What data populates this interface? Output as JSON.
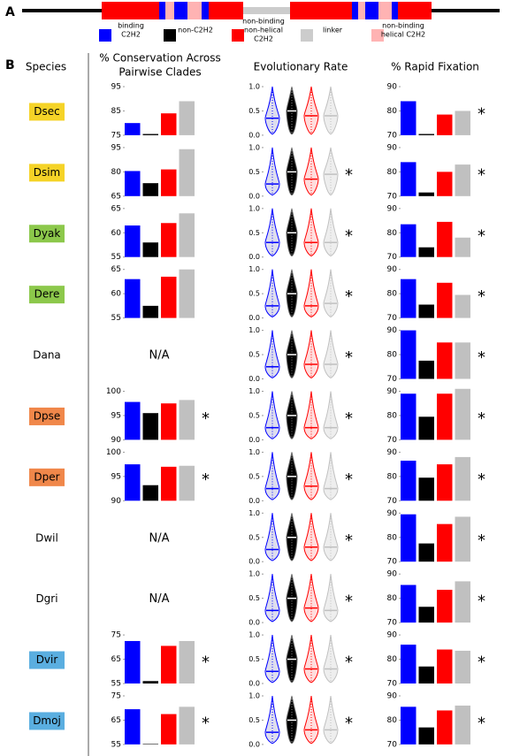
{
  "labels": {
    "a": "A",
    "b": "B"
  },
  "legend": [
    {
      "lines": [
        "binding",
        "C2H2"
      ],
      "color": "#0000ff"
    },
    {
      "lines": [
        "non-C2H2"
      ],
      "color": "#000000"
    },
    {
      "lines": [
        "non-binding",
        "non-helical",
        "C2H2"
      ],
      "color": "#ff0000"
    },
    {
      "lines": [
        "linker"
      ],
      "color": "#cccccc"
    },
    {
      "lines": [
        "non-binding",
        "helical C2H2"
      ],
      "color": "#ffb3b3"
    }
  ],
  "headers": {
    "species": "Species",
    "conservation": [
      "% Conservation Across",
      "Pairwise Clades"
    ],
    "rate": "Evolutionary Rate",
    "fixation": "% Rapid Fixation"
  },
  "bar_colors": [
    "#0000ff",
    "#000000",
    "#ff0000",
    "#c0c0c0"
  ],
  "rate_axis": {
    "ylim": [
      0,
      1
    ],
    "yticks": [
      {
        "value": 0,
        "label": "0.0"
      },
      {
        "value": 0.5,
        "label": "0.5"
      },
      {
        "value": 1,
        "label": "1.0"
      }
    ]
  },
  "species": [
    {
      "name": "Dsec",
      "color": "#f5d327",
      "conservation": {
        "type": "bar",
        "ylim": [
          75,
          95
        ],
        "yticks": [
          75,
          85,
          95
        ],
        "values": [
          80,
          75.5,
          84,
          89
        ]
      },
      "rate": {
        "type": "violin",
        "medians": [
          0.35,
          0.5,
          0.4,
          0.4
        ]
      },
      "fixation": {
        "type": "bar",
        "ylim": [
          70,
          90
        ],
        "yticks": [
          70,
          80,
          90
        ],
        "values": [
          84,
          70.5,
          78.5,
          80
        ],
        "star": "*"
      }
    },
    {
      "name": "Dsim",
      "color": "#f5d327",
      "conservation": {
        "type": "bar",
        "ylim": [
          65,
          95
        ],
        "yticks": [
          65,
          80,
          95
        ],
        "values": [
          80.5,
          73,
          81.5,
          94
        ]
      },
      "rate": {
        "type": "violin",
        "medians": [
          0.25,
          0.5,
          0.35,
          0.45
        ],
        "star": "*"
      },
      "fixation": {
        "type": "bar",
        "ylim": [
          70,
          90
        ],
        "yticks": [
          70,
          80,
          90
        ],
        "values": [
          84,
          71.5,
          80,
          83
        ],
        "star": "*"
      }
    },
    {
      "name": "Dyak",
      "color": "#8cc84b",
      "conservation": {
        "type": "bar",
        "ylim": [
          55,
          65
        ],
        "yticks": [
          55,
          60,
          65
        ],
        "values": [
          61.5,
          58,
          62,
          64
        ]
      },
      "rate": {
        "type": "violin",
        "medians": [
          0.3,
          0.5,
          0.3,
          0.3
        ],
        "star": "*"
      },
      "fixation": {
        "type": "bar",
        "ylim": [
          70,
          90
        ],
        "yticks": [
          70,
          80,
          90
        ],
        "values": [
          83.5,
          74,
          84.5,
          78
        ],
        "star": "*"
      }
    },
    {
      "name": "Dere",
      "color": "#8cc84b",
      "conservation": {
        "type": "bar",
        "ylim": [
          55,
          65
        ],
        "yticks": [
          55,
          60,
          65
        ],
        "values": [
          63,
          57.5,
          63.5,
          65
        ]
      },
      "rate": {
        "type": "violin",
        "medians": [
          0.25,
          0.5,
          0.25,
          0.3
        ],
        "star": "*"
      },
      "fixation": {
        "type": "bar",
        "ylim": [
          70,
          90
        ],
        "yticks": [
          70,
          80,
          90
        ],
        "values": [
          86,
          75.5,
          84.5,
          79.5
        ],
        "star": "*"
      }
    },
    {
      "name": "Dana",
      "color": null,
      "conservation": {
        "na": "N/A"
      },
      "rate": {
        "type": "violin",
        "medians": [
          0.25,
          0.5,
          0.3,
          0.3
        ],
        "star": "*"
      },
      "fixation": {
        "type": "bar",
        "ylim": [
          70,
          90
        ],
        "yticks": [
          70,
          80,
          90
        ],
        "values": [
          90,
          77.5,
          85,
          85
        ],
        "star": "*"
      }
    },
    {
      "name": "Dpse",
      "color": "#f0874a",
      "conservation": {
        "type": "bar",
        "ylim": [
          90,
          100
        ],
        "yticks": [
          90,
          95,
          100
        ],
        "values": [
          97.8,
          95.5,
          97.5,
          98.2
        ],
        "star": "*"
      },
      "rate": {
        "type": "violin",
        "medians": [
          0.25,
          0.5,
          0.25,
          0.25
        ],
        "star": "*"
      },
      "fixation": {
        "type": "bar",
        "ylim": [
          70,
          90
        ],
        "yticks": [
          70,
          80,
          90
        ],
        "values": [
          89,
          79.5,
          89,
          91
        ],
        "star": "*"
      }
    },
    {
      "name": "Dper",
      "color": "#f0874a",
      "conservation": {
        "type": "bar",
        "ylim": [
          90,
          100
        ],
        "yticks": [
          90,
          95,
          100
        ],
        "values": [
          97.5,
          93.2,
          97,
          97.2
        ],
        "star": "*"
      },
      "rate": {
        "type": "violin",
        "medians": [
          0.25,
          0.5,
          0.3,
          0.25
        ],
        "star": "*"
      },
      "fixation": {
        "type": "bar",
        "ylim": [
          70,
          90
        ],
        "yticks": [
          70,
          80,
          90
        ],
        "values": [
          86.5,
          79.5,
          85,
          88
        ],
        "star": "*"
      }
    },
    {
      "name": "Dwil",
      "color": null,
      "conservation": {
        "na": "N/A"
      },
      "rate": {
        "type": "violin",
        "medians": [
          0.25,
          0.5,
          0.3,
          0.3
        ],
        "star": "*"
      },
      "fixation": {
        "type": "bar",
        "ylim": [
          70,
          90
        ],
        "yticks": [
          70,
          80,
          90
        ],
        "values": [
          89.5,
          77.5,
          85.5,
          88.5
        ],
        "star": "*"
      }
    },
    {
      "name": "Dgri",
      "color": null,
      "conservation": {
        "na": "N/A"
      },
      "rate": {
        "type": "violin",
        "medians": [
          0.25,
          0.5,
          0.3,
          0.25
        ],
        "star": "*"
      },
      "fixation": {
        "type": "bar",
        "ylim": [
          70,
          90
        ],
        "yticks": [
          70,
          80,
          90
        ],
        "values": [
          85.5,
          76.5,
          83.5,
          87
        ],
        "star": "*"
      }
    },
    {
      "name": "Dvir",
      "color": "#5aaee0",
      "conservation": {
        "type": "bar",
        "ylim": [
          55,
          75
        ],
        "yticks": [
          55,
          65,
          75
        ],
        "values": [
          72.5,
          56,
          70.5,
          72.5
        ],
        "star": "*"
      },
      "rate": {
        "type": "violin",
        "medians": [
          0.25,
          0.5,
          0.3,
          0.3
        ],
        "star": "*"
      },
      "fixation": {
        "type": "bar",
        "ylim": [
          70,
          90
        ],
        "yticks": [
          70,
          80,
          90
        ],
        "values": [
          86,
          77,
          84,
          83.5
        ],
        "star": "*"
      }
    },
    {
      "name": "Dmoj",
      "color": "#5aaee0",
      "conservation": {
        "type": "bar",
        "ylim": [
          55,
          75
        ],
        "yticks": [
          55,
          65,
          75
        ],
        "values": [
          69.5,
          55.2,
          67.5,
          70.5
        ],
        "star": "*"
      },
      "rate": {
        "type": "violin",
        "medians": [
          0.25,
          0.5,
          0.3,
          0.3
        ],
        "star": "*"
      },
      "fixation": {
        "type": "bar",
        "ylim": [
          70,
          90
        ],
        "yticks": [
          70,
          80,
          90
        ],
        "values": [
          85.5,
          77,
          84,
          86
        ],
        "star": "*"
      }
    }
  ]
}
